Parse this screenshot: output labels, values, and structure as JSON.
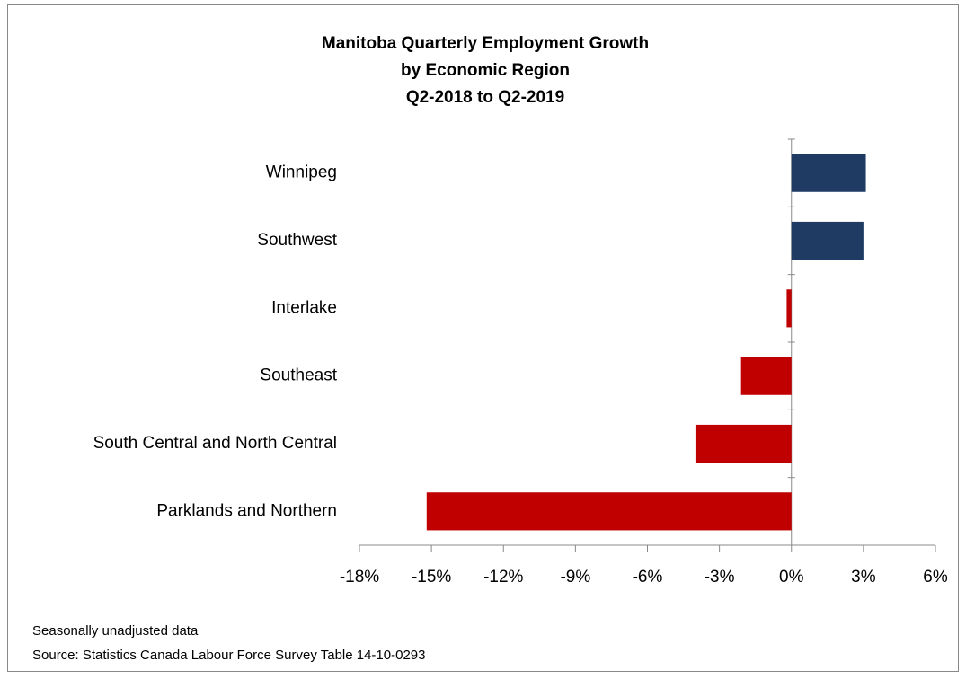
{
  "chart_data": {
    "type": "hbar",
    "title": [
      "Manitoba Quarterly Employment Growth",
      "by Economic Region",
      "Q2-2018 to Q2-2019"
    ],
    "categories": [
      "Winnipeg",
      "Southwest",
      "Interlake",
      "Southeast",
      "South Central and North Central",
      "Parklands and Northern"
    ],
    "values": [
      3.1,
      3.0,
      -0.2,
      -2.1,
      -4.0,
      -15.2
    ],
    "colors": [
      "#1f3b64",
      "#1f3b64",
      "#c00000",
      "#c00000",
      "#c00000",
      "#c00000"
    ],
    "xlim": [
      -18,
      6
    ],
    "xticks": [
      {
        "value": -18,
        "label": "-18%"
      },
      {
        "value": -15,
        "label": "-15%"
      },
      {
        "value": -12,
        "label": "-12%"
      },
      {
        "value": -9,
        "label": "-9%"
      },
      {
        "value": -6,
        "label": "-6%"
      },
      {
        "value": -3,
        "label": "-3%"
      },
      {
        "value": 0,
        "label": "0%"
      },
      {
        "value": 3,
        "label": "3%"
      },
      {
        "value": 6,
        "label": "6%"
      }
    ],
    "grid": false,
    "notes": [
      "Seasonally unadjusted data",
      "Source: Statistics Canada Labour Force Survey Table 14-10-0293"
    ]
  }
}
